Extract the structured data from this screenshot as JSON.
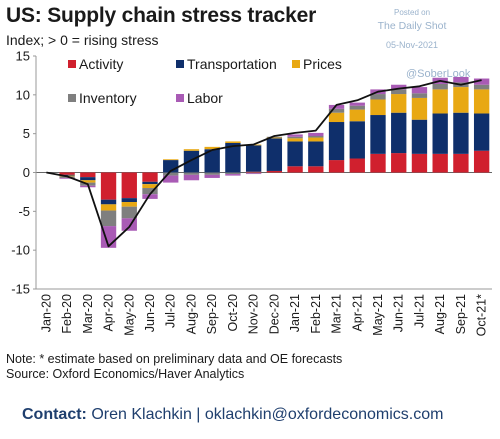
{
  "header": {
    "title": "US: Supply chain stress tracker",
    "subtitle": "Index; > 0 = rising stress"
  },
  "watermark": {
    "posted_on": "Posted on",
    "source_name": "The Daily Shot",
    "date": "05-Nov-2021",
    "handle": "@SoberLook"
  },
  "footer": {
    "note": "Note: * estimate based on preliminary data and OE forecasts",
    "source": "Source: Oxford Economics/Haver Analytics",
    "contact_label": "Contact:",
    "contact_name": "Oren Klachkin | oklachkin@oxfordeconomics.com"
  },
  "chart_data": {
    "type": "bar",
    "stacked": true,
    "categories": [
      "Jan-20",
      "Feb-20",
      "Mar-20",
      "Apr-20",
      "May-20",
      "Jun-20",
      "Jul-20",
      "Aug-20",
      "Sep-20",
      "Oct-20",
      "Nov-20",
      "Dec-20",
      "Jan-21",
      "Feb-21",
      "Mar-21",
      "Apr-21",
      "May-21",
      "Jun-21",
      "Jul-21",
      "Aug-21",
      "Sep-21",
      "Oct-21*"
    ],
    "ylim": [
      -15,
      15
    ],
    "yticks": [
      -15,
      -10,
      -5,
      0,
      5,
      10,
      15
    ],
    "legend_position": "top-left",
    "series": [
      {
        "name": "Activity",
        "color": "#d0202e",
        "values": [
          0,
          -0.3,
          -0.6,
          -3.5,
          -3.3,
          -1.2,
          0,
          0,
          0,
          0,
          0.1,
          0.2,
          0.8,
          0.8,
          1.6,
          1.8,
          2.4,
          2.5,
          2.4,
          2.4,
          2.4,
          2.8
        ]
      },
      {
        "name": "Transportation",
        "color": "#0f2f6b",
        "values": [
          0,
          -0.1,
          -0.4,
          -0.6,
          -0.5,
          -0.3,
          1.6,
          2.8,
          3.0,
          3.8,
          3.4,
          4.2,
          3.2,
          3.2,
          4.9,
          4.8,
          5.0,
          5.2,
          4.4,
          5.2,
          5.3,
          4.8
        ]
      },
      {
        "name": "Prices",
        "color": "#e8a813",
        "values": [
          0,
          -0.1,
          -0.3,
          -0.8,
          -0.6,
          -0.5,
          0.1,
          0.2,
          0.3,
          0.2,
          0.1,
          0.1,
          0.4,
          0.5,
          1.2,
          1.5,
          2.0,
          2.4,
          2.8,
          3.1,
          3.3,
          3.1
        ]
      },
      {
        "name": "Inventory",
        "color": "#7f7f7f",
        "values": [
          0,
          -0.2,
          -0.4,
          -2.0,
          -1.5,
          -0.8,
          -0.4,
          -0.3,
          -0.3,
          -0.2,
          -0.1,
          0.1,
          0.2,
          0.2,
          0.5,
          0.5,
          0.7,
          0.6,
          0.6,
          0.7,
          0.6,
          0.6
        ]
      },
      {
        "name": "Labor",
        "color": "#a95bb5",
        "values": [
          0,
          -0.1,
          -0.2,
          -2.8,
          -1.6,
          -0.6,
          -0.9,
          -0.7,
          -0.4,
          -0.2,
          -0.1,
          0.0,
          0.3,
          0.4,
          0.5,
          0.4,
          0.6,
          0.6,
          0.8,
          0.8,
          0.7,
          0.8
        ]
      }
    ],
    "total_line": {
      "color": "#111111",
      "values": [
        0,
        -0.5,
        -1.5,
        -9.5,
        -7.0,
        -2.8,
        0.2,
        1.6,
        2.9,
        3.4,
        3.6,
        4.7,
        5.1,
        5.4,
        8.7,
        9.3,
        10.4,
        10.8,
        11.1,
        11.8,
        11.3,
        11.9
      ]
    }
  }
}
